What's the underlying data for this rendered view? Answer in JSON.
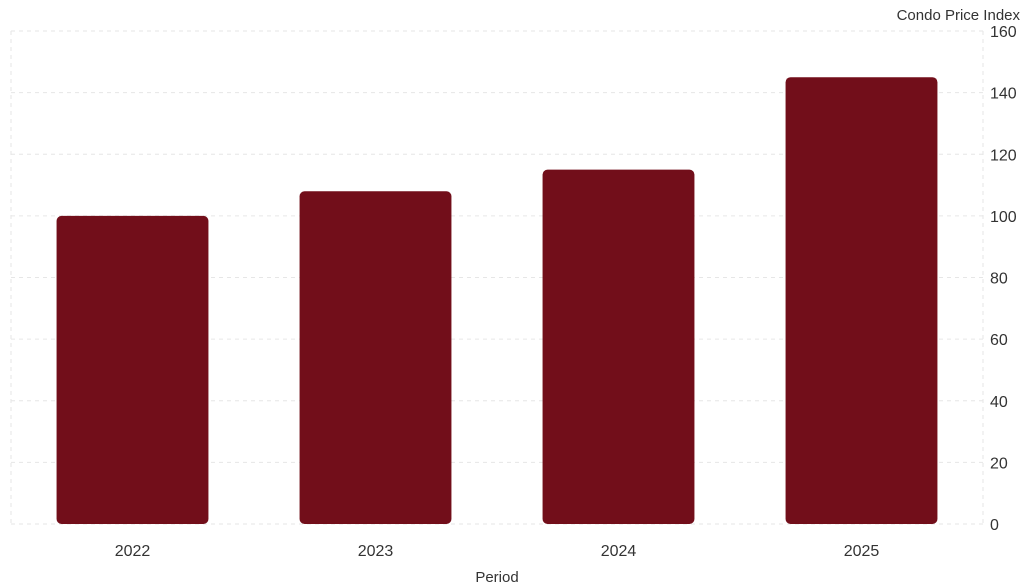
{
  "chart_data": {
    "type": "bar",
    "categories": [
      "2022",
      "2023",
      "2024",
      "2025"
    ],
    "values": [
      100,
      108,
      115,
      145
    ],
    "xlabel": "Period",
    "ylabel": "Condo Price Index",
    "ylim": [
      0,
      160
    ],
    "yticks": [
      0,
      20,
      40,
      60,
      80,
      100,
      120,
      140,
      160
    ],
    "y_axis_side": "right",
    "grid": true,
    "legend": "none",
    "bar_color": "#720e1a"
  }
}
